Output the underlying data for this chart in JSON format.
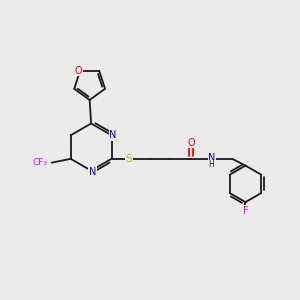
{
  "bg_color": "#ebebeb",
  "bond_color": "#1a1a1a",
  "atom_colors": {
    "O": "#ff0000",
    "N": "#0000dd",
    "S": "#bbbb00",
    "CF3": "#ee00ee",
    "F": "#ee00ee",
    "NH_N": "#0000dd",
    "NH_H": "#1a1a1a"
  },
  "figsize": [
    3.0,
    3.0
  ],
  "dpi": 100
}
